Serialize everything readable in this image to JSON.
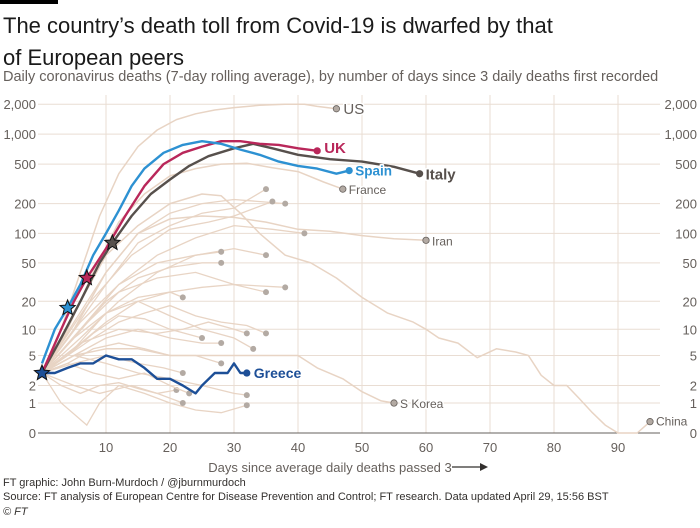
{
  "title": "The country’s death toll from Covid-19 is dwarfed by that of European peers",
  "subtitle": "Daily coronavirus deaths (7-day rolling average), by number of days since 3 daily deaths first recorded",
  "footer": {
    "credit": "FT graphic: John Burn-Murdoch / @jburnmurdoch",
    "source": "Source: FT analysis of European Centre for Disease Prevention and Control; FT research. Data updated April 29, 15:56 BST",
    "copyright": "© FT"
  },
  "chart_data": {
    "type": "line",
    "xlabel": "Days since average daily deaths passed 3",
    "ylabel": "",
    "yscale": "log (value+1)",
    "xlim": [
      0,
      97
    ],
    "ylim": [
      0,
      2000
    ],
    "x_ticks": [
      10,
      20,
      30,
      40,
      50,
      60,
      70,
      80,
      90
    ],
    "y_ticks": [
      {
        "v": 2000,
        "t": "2,000"
      },
      {
        "v": 1000,
        "t": "1,000"
      },
      {
        "v": 500,
        "t": "500"
      },
      {
        "v": 200,
        "t": "200"
      },
      {
        "v": 100,
        "t": "100"
      },
      {
        "v": 50,
        "t": "50"
      },
      {
        "v": 20,
        "t": "20"
      },
      {
        "v": 10,
        "t": "10"
      },
      {
        "v": 5,
        "t": "5"
      },
      {
        "v": 2,
        "t": "2"
      },
      {
        "v": 1,
        "t": "1"
      },
      {
        "v": 0,
        "t": "0"
      }
    ],
    "grid": true,
    "colors": {
      "grid": "#e9ddd3",
      "background_line": "#e8d4c4",
      "end_dot": "#b3aaa3",
      "UK": "#b9275a",
      "Spain": "#2d91d2",
      "Italy": "#57504c",
      "Greece": "#1d4f97",
      "minor_label": "#66605c"
    },
    "series": [
      {
        "name": "US",
        "style": "minor",
        "points": [
          [
            0,
            3
          ],
          [
            3,
            10
          ],
          [
            6,
            40
          ],
          [
            9,
            150
          ],
          [
            12,
            400
          ],
          [
            15,
            750
          ],
          [
            18,
            1100
          ],
          [
            21,
            1400
          ],
          [
            24,
            1600
          ],
          [
            27,
            1750
          ],
          [
            30,
            1850
          ],
          [
            34,
            1950
          ],
          [
            38,
            2000
          ],
          [
            41,
            2000
          ],
          [
            43,
            1900
          ],
          [
            46,
            1800
          ]
        ]
      },
      {
        "name": "France",
        "style": "minor",
        "points": [
          [
            0,
            3
          ],
          [
            4,
            10
          ],
          [
            8,
            40
          ],
          [
            12,
            130
          ],
          [
            16,
            250
          ],
          [
            20,
            380
          ],
          [
            24,
            450
          ],
          [
            28,
            500
          ],
          [
            32,
            510
          ],
          [
            36,
            460
          ],
          [
            40,
            420
          ],
          [
            44,
            330
          ],
          [
            47,
            280
          ]
        ]
      },
      {
        "name": "Iran",
        "style": "minor",
        "points": [
          [
            0,
            3
          ],
          [
            5,
            10
          ],
          [
            10,
            40
          ],
          [
            15,
            100
          ],
          [
            20,
            140
          ],
          [
            25,
            150
          ],
          [
            30,
            145
          ],
          [
            35,
            130
          ],
          [
            40,
            110
          ],
          [
            45,
            105
          ],
          [
            50,
            95
          ],
          [
            55,
            88
          ],
          [
            60,
            85
          ]
        ]
      },
      {
        "name": "S Korea",
        "style": "minor",
        "points": [
          [
            0,
            3
          ],
          [
            5,
            5
          ],
          [
            10,
            6
          ],
          [
            15,
            6
          ],
          [
            20,
            5
          ],
          [
            25,
            5
          ],
          [
            30,
            5
          ],
          [
            35,
            5
          ],
          [
            40,
            5
          ],
          [
            43,
            3.5
          ],
          [
            47,
            2.5
          ],
          [
            50,
            1.6
          ],
          [
            53,
            1.1
          ],
          [
            55,
            1
          ]
        ]
      },
      {
        "name": "China",
        "style": "minor",
        "points": [
          [
            0,
            3
          ],
          [
            5,
            15
          ],
          [
            10,
            60
          ],
          [
            15,
            120
          ],
          [
            20,
            200
          ],
          [
            25,
            250
          ],
          [
            28,
            240
          ],
          [
            31,
            160
          ],
          [
            34,
            100
          ],
          [
            38,
            60
          ],
          [
            42,
            50
          ],
          [
            46,
            35
          ],
          [
            50,
            22
          ],
          [
            54,
            15
          ],
          [
            58,
            12
          ],
          [
            60,
            10
          ],
          [
            62,
            8
          ],
          [
            65,
            7
          ],
          [
            68,
            4.7
          ],
          [
            71,
            6
          ],
          [
            74,
            5.5
          ],
          [
            76,
            5
          ],
          [
            78,
            2.8
          ],
          [
            80,
            2
          ],
          [
            82,
            2
          ],
          [
            84,
            1.2
          ],
          [
            86,
            0.6
          ],
          [
            88,
            0.2
          ],
          [
            90,
            0
          ],
          [
            93,
            0
          ],
          [
            95,
            0.3
          ]
        ]
      },
      {
        "name": "UK",
        "style": "highlight",
        "star_day": 7,
        "points": [
          [
            0,
            3
          ],
          [
            3,
            10
          ],
          [
            5,
            20
          ],
          [
            7,
            35
          ],
          [
            10,
            70
          ],
          [
            13,
            150
          ],
          [
            16,
            300
          ],
          [
            19,
            500
          ],
          [
            22,
            650
          ],
          [
            25,
            750
          ],
          [
            28,
            850
          ],
          [
            31,
            850
          ],
          [
            34,
            800
          ],
          [
            37,
            780
          ],
          [
            40,
            720
          ],
          [
            43,
            680
          ]
        ]
      },
      {
        "name": "Spain",
        "style": "highlight",
        "star_day": 4,
        "points": [
          [
            0,
            4
          ],
          [
            2,
            10
          ],
          [
            4,
            17
          ],
          [
            6,
            30
          ],
          [
            8,
            60
          ],
          [
            10,
            100
          ],
          [
            12,
            170
          ],
          [
            14,
            300
          ],
          [
            16,
            450
          ],
          [
            19,
            650
          ],
          [
            22,
            780
          ],
          [
            25,
            850
          ],
          [
            28,
            800
          ],
          [
            31,
            700
          ],
          [
            34,
            620
          ],
          [
            37,
            530
          ],
          [
            40,
            480
          ],
          [
            43,
            450
          ],
          [
            46,
            400
          ],
          [
            48,
            430
          ]
        ]
      },
      {
        "name": "Italy",
        "style": "highlight",
        "star_day": 11,
        "points": [
          [
            0,
            3
          ],
          [
            3,
            8
          ],
          [
            6,
            20
          ],
          [
            9,
            50
          ],
          [
            11,
            80
          ],
          [
            14,
            150
          ],
          [
            17,
            250
          ],
          [
            20,
            350
          ],
          [
            23,
            480
          ],
          [
            26,
            600
          ],
          [
            30,
            720
          ],
          [
            33,
            800
          ],
          [
            36,
            720
          ],
          [
            40,
            620
          ],
          [
            45,
            560
          ],
          [
            50,
            530
          ],
          [
            55,
            470
          ],
          [
            59,
            400
          ]
        ]
      },
      {
        "name": "Greece",
        "style": "highlight",
        "star_day": 0,
        "points": [
          [
            0,
            3
          ],
          [
            2,
            3
          ],
          [
            4,
            3.5
          ],
          [
            6,
            4
          ],
          [
            8,
            4
          ],
          [
            10,
            5
          ],
          [
            12,
            4.5
          ],
          [
            14,
            4.5
          ],
          [
            16,
            3.5
          ],
          [
            18,
            2.5
          ],
          [
            20,
            2.5
          ],
          [
            22,
            2
          ],
          [
            24,
            1.5
          ],
          [
            25,
            2
          ],
          [
            27,
            3
          ],
          [
            29,
            3
          ],
          [
            30,
            4
          ],
          [
            31,
            3
          ],
          [
            32,
            3
          ]
        ]
      }
    ],
    "background_series": [
      [
        [
          0,
          3
        ],
        [
          5,
          8
        ],
        [
          10,
          20
        ],
        [
          15,
          35
        ],
        [
          20,
          45
        ],
        [
          25,
          50
        ],
        [
          28,
          50
        ]
      ],
      [
        [
          0,
          3
        ],
        [
          6,
          10
        ],
        [
          12,
          25
        ],
        [
          18,
          35
        ],
        [
          24,
          40
        ],
        [
          30,
          30
        ],
        [
          35,
          25
        ]
      ],
      [
        [
          0,
          3
        ],
        [
          5,
          6
        ],
        [
          10,
          12
        ],
        [
          15,
          20
        ],
        [
          20,
          25
        ],
        [
          25,
          28
        ],
        [
          30,
          30
        ],
        [
          38,
          28
        ]
      ],
      [
        [
          0,
          3
        ],
        [
          4,
          5
        ],
        [
          8,
          8
        ],
        [
          12,
          12
        ],
        [
          16,
          15
        ],
        [
          20,
          18
        ],
        [
          24,
          14
        ],
        [
          28,
          12
        ],
        [
          32,
          11
        ],
        [
          35,
          9
        ]
      ],
      [
        [
          0,
          3
        ],
        [
          6,
          7
        ],
        [
          12,
          10
        ],
        [
          18,
          9
        ],
        [
          22,
          10
        ],
        [
          26,
          12
        ],
        [
          30,
          10
        ],
        [
          32,
          9
        ]
      ],
      [
        [
          0,
          3
        ],
        [
          4,
          4
        ],
        [
          8,
          6
        ],
        [
          12,
          7
        ],
        [
          16,
          6
        ],
        [
          20,
          5
        ],
        [
          24,
          5
        ],
        [
          28,
          4
        ]
      ],
      [
        [
          0,
          3
        ],
        [
          5,
          5
        ],
        [
          10,
          4
        ],
        [
          15,
          3
        ],
        [
          20,
          2.5
        ],
        [
          25,
          2
        ],
        [
          30,
          1.5
        ],
        [
          32,
          1.4
        ]
      ],
      [
        [
          0,
          3
        ],
        [
          3,
          1
        ],
        [
          7,
          0.2
        ],
        [
          9,
          1
        ],
        [
          12,
          2
        ],
        [
          16,
          1.5
        ],
        [
          20,
          1
        ],
        [
          24,
          0.7
        ],
        [
          28,
          0.6
        ],
        [
          32,
          0.9
        ]
      ],
      [
        [
          0,
          3
        ],
        [
          5,
          10
        ],
        [
          10,
          30
        ],
        [
          15,
          80
        ],
        [
          20,
          120
        ],
        [
          25,
          160
        ],
        [
          30,
          180
        ],
        [
          35,
          280
        ]
      ],
      [
        [
          0,
          3
        ],
        [
          5,
          12
        ],
        [
          10,
          40
        ],
        [
          15,
          100
        ],
        [
          20,
          160
        ],
        [
          25,
          200
        ],
        [
          30,
          220
        ],
        [
          38,
          200
        ]
      ],
      [
        [
          0,
          3
        ],
        [
          6,
          10
        ],
        [
          12,
          30
        ],
        [
          18,
          60
        ],
        [
          24,
          90
        ],
        [
          30,
          120
        ],
        [
          36,
          110
        ],
        [
          41,
          100
        ]
      ],
      [
        [
          0,
          3
        ],
        [
          6,
          8
        ],
        [
          12,
          20
        ],
        [
          18,
          40
        ],
        [
          24,
          60
        ],
        [
          30,
          70
        ],
        [
          35,
          60
        ]
      ],
      [
        [
          0,
          3
        ],
        [
          5,
          6
        ],
        [
          10,
          15
        ],
        [
          15,
          22
        ],
        [
          20,
          25
        ],
        [
          22,
          22
        ]
      ],
      [
        [
          0,
          3
        ],
        [
          4,
          5
        ],
        [
          8,
          9
        ],
        [
          12,
          14
        ],
        [
          16,
          13
        ],
        [
          20,
          10
        ],
        [
          25,
          8
        ]
      ],
      [
        [
          0,
          3
        ],
        [
          5,
          4
        ],
        [
          10,
          5
        ],
        [
          15,
          4
        ],
        [
          19,
          3.5
        ],
        [
          22,
          3
        ]
      ],
      [
        [
          0,
          3
        ],
        [
          3,
          2
        ],
        [
          6,
          1.5
        ],
        [
          9,
          2
        ],
        [
          12,
          2.2
        ],
        [
          15,
          1.8
        ],
        [
          18,
          1.5
        ],
        [
          21,
          1.7
        ]
      ],
      [
        [
          0,
          3
        ],
        [
          5,
          8
        ],
        [
          10,
          15
        ],
        [
          15,
          20
        ],
        [
          20,
          14
        ],
        [
          25,
          10
        ],
        [
          30,
          8
        ],
        [
          33,
          6
        ]
      ],
      [
        [
          0,
          3
        ],
        [
          6,
          12
        ],
        [
          12,
          30
        ],
        [
          18,
          50
        ],
        [
          24,
          60
        ],
        [
          28,
          65
        ]
      ],
      [
        [
          0,
          3
        ],
        [
          4,
          4
        ],
        [
          8,
          3
        ],
        [
          12,
          2.5
        ],
        [
          16,
          3
        ],
        [
          20,
          2
        ],
        [
          23,
          1.5
        ]
      ],
      [
        [
          0,
          3
        ],
        [
          5,
          5
        ],
        [
          10,
          8
        ],
        [
          15,
          10
        ],
        [
          20,
          8
        ],
        [
          25,
          7
        ],
        [
          28,
          7
        ]
      ],
      [
        [
          0,
          3
        ],
        [
          7,
          18
        ],
        [
          14,
          60
        ],
        [
          20,
          110
        ],
        [
          26,
          130
        ],
        [
          30,
          150
        ],
        [
          36,
          210
        ]
      ],
      [
        [
          0,
          3
        ],
        [
          5,
          2
        ],
        [
          9,
          1.5
        ],
        [
          14,
          2
        ],
        [
          18,
          1.5
        ],
        [
          22,
          1
        ]
      ]
    ]
  }
}
